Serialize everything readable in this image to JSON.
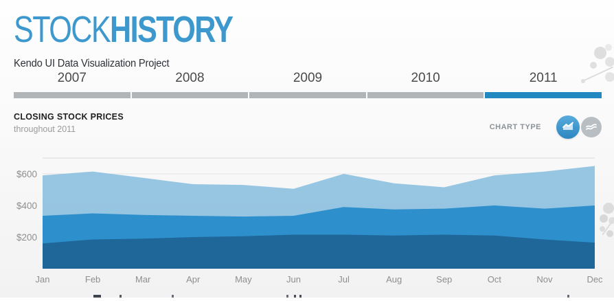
{
  "page": {
    "title_light": "STOCK",
    "title_bold": "HISTORY",
    "subtitle": "Kendo UI Data Visualization Project"
  },
  "tabs": {
    "items": [
      {
        "label": "2007",
        "active": false
      },
      {
        "label": "2008",
        "active": false
      },
      {
        "label": "2009",
        "active": false
      },
      {
        "label": "2010",
        "active": false
      },
      {
        "label": "2011",
        "active": true
      }
    ],
    "active_color": "#2189c0",
    "inactive_color": "#b1b5b7"
  },
  "section": {
    "heading": "CLOSING STOCK PRICES",
    "subheading": "throughout 2011"
  },
  "chart_type": {
    "label": "CHART TYPE",
    "options": [
      {
        "name": "area-chart",
        "active": true,
        "color": "#3d9ad2"
      },
      {
        "name": "line-chart",
        "active": false,
        "color": "#b9bec3"
      }
    ]
  },
  "chart_data": {
    "type": "area",
    "stacked": true,
    "categories": [
      "Jan",
      "Feb",
      "Mar",
      "Apr",
      "May",
      "Jun",
      "Jul",
      "Aug",
      "Sep",
      "Oct",
      "Nov",
      "Dec"
    ],
    "series": [
      {
        "name": "series-1-bottom",
        "color": "#1f6699",
        "values": [
          160,
          185,
          190,
          200,
          205,
          215,
          215,
          210,
          215,
          210,
          185,
          165
        ]
      },
      {
        "name": "series-2-middle",
        "color": "#2d8fcb",
        "values": [
          175,
          165,
          150,
          135,
          125,
          120,
          175,
          165,
          165,
          190,
          195,
          235
        ]
      },
      {
        "name": "series-3-top",
        "color": "#8cc0e0",
        "values": [
          255,
          265,
          235,
          200,
          200,
          170,
          210,
          165,
          135,
          190,
          235,
          250
        ]
      }
    ],
    "stacked_totals": [
      590,
      615,
      575,
      535,
      530,
      505,
      600,
      540,
      515,
      590,
      615,
      650
    ],
    "yticks": [
      {
        "label": "$200",
        "value": 200
      },
      {
        "label": "$400",
        "value": 400
      },
      {
        "label": "$600",
        "value": 600
      }
    ],
    "ylim": [
      0,
      700
    ],
    "grid": "horizontal every 100, light gray",
    "legend_position": "below (cut off by viewport)",
    "axis_text_color": "#8e8e8e"
  }
}
